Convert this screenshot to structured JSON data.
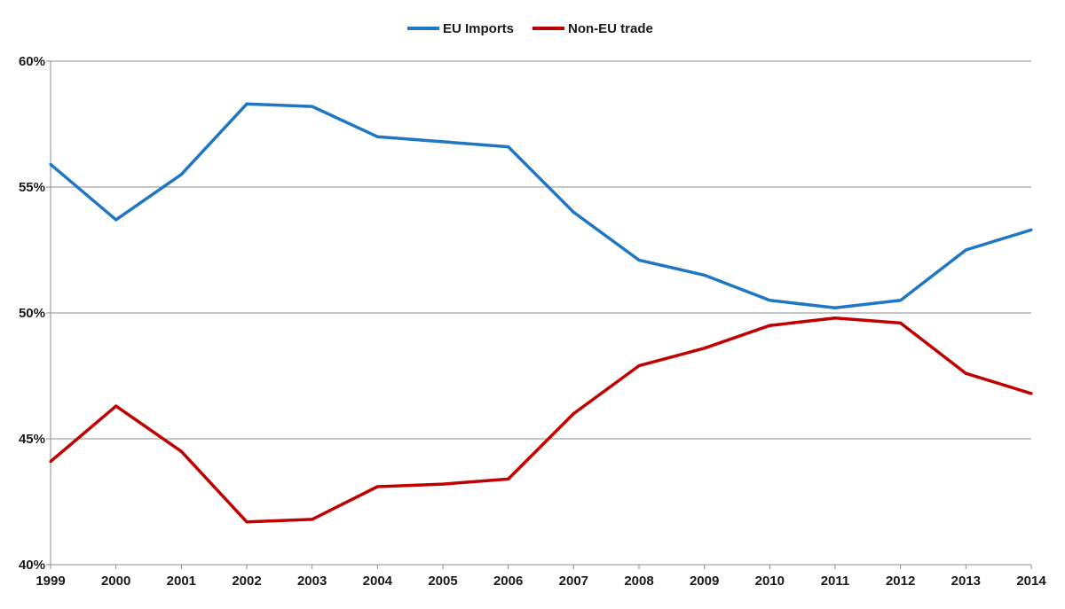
{
  "chart_data": {
    "type": "line",
    "title": "",
    "xlabel": "",
    "ylabel": "",
    "categories": [
      "1999",
      "2000",
      "2001",
      "2002",
      "2003",
      "2004",
      "2005",
      "2006",
      "2007",
      "2008",
      "2009",
      "2010",
      "2011",
      "2012",
      "2013",
      "2014"
    ],
    "ylim": [
      40,
      60
    ],
    "yticks": [
      40,
      45,
      50,
      55,
      60
    ],
    "ytick_labels": [
      "40%",
      "45%",
      "50%",
      "55%",
      "60%"
    ],
    "grid": true,
    "legend_position": "top-center",
    "series": [
      {
        "name": "EU Imports",
        "color": "#1f77c4",
        "values": [
          55.9,
          53.7,
          55.5,
          58.3,
          58.2,
          57.0,
          56.8,
          56.6,
          54.0,
          52.1,
          51.5,
          50.5,
          50.2,
          50.5,
          52.5,
          53.3
        ]
      },
      {
        "name": "Non-EU trade",
        "color": "#c00000",
        "values": [
          44.1,
          46.3,
          44.5,
          41.7,
          41.8,
          43.1,
          43.2,
          43.4,
          46.0,
          47.9,
          48.6,
          49.5,
          49.8,
          49.6,
          47.6,
          46.8
        ]
      }
    ]
  }
}
